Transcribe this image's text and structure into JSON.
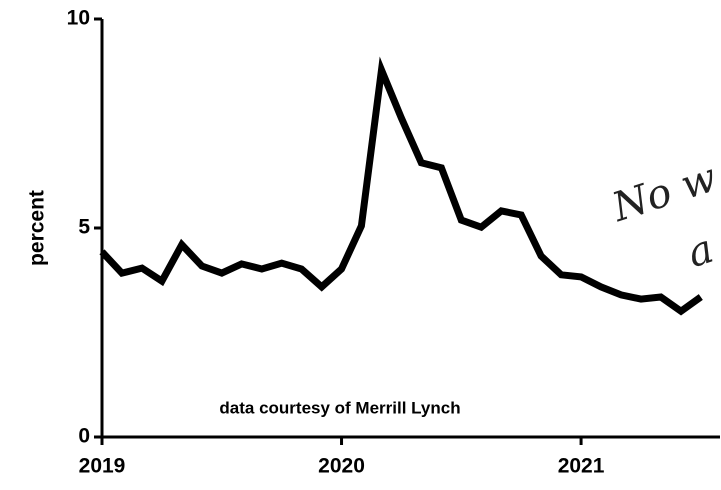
{
  "chart_data": {
    "type": "line",
    "ylabel": "percent",
    "annotations": [
      "data courtesy of Merrill Lynch",
      "No w",
      "a"
    ],
    "x": [
      2019,
      2019.083,
      2019.167,
      2019.25,
      2019.333,
      2019.417,
      2019.5,
      2019.583,
      2019.667,
      2019.75,
      2019.833,
      2019.917,
      2020,
      2020.083,
      2020.167,
      2020.25,
      2020.333,
      2020.417,
      2020.5,
      2020.583,
      2020.667,
      2020.75,
      2020.833,
      2020.917,
      2021,
      2021.083,
      2021.167,
      2021.25,
      2021.333,
      2021.417,
      2021.5
    ],
    "values": [
      4.43,
      3.92,
      4.04,
      3.73,
      4.6,
      4.09,
      3.92,
      4.14,
      4.02,
      4.16,
      4.02,
      3.59,
      4.02,
      5.05,
      8.78,
      7.63,
      6.56,
      6.44,
      5.19,
      5.02,
      5.41,
      5.31,
      4.33,
      3.88,
      3.83,
      3.59,
      3.4,
      3.3,
      3.35,
      3.01,
      3.35
    ],
    "color": "#000000",
    "xlim": [
      2019,
      2021.58
    ],
    "xticks": [
      2019,
      2020,
      2021
    ],
    "ylim": [
      0,
      10
    ],
    "yticks": [
      0,
      5,
      10
    ],
    "grid": false
  }
}
